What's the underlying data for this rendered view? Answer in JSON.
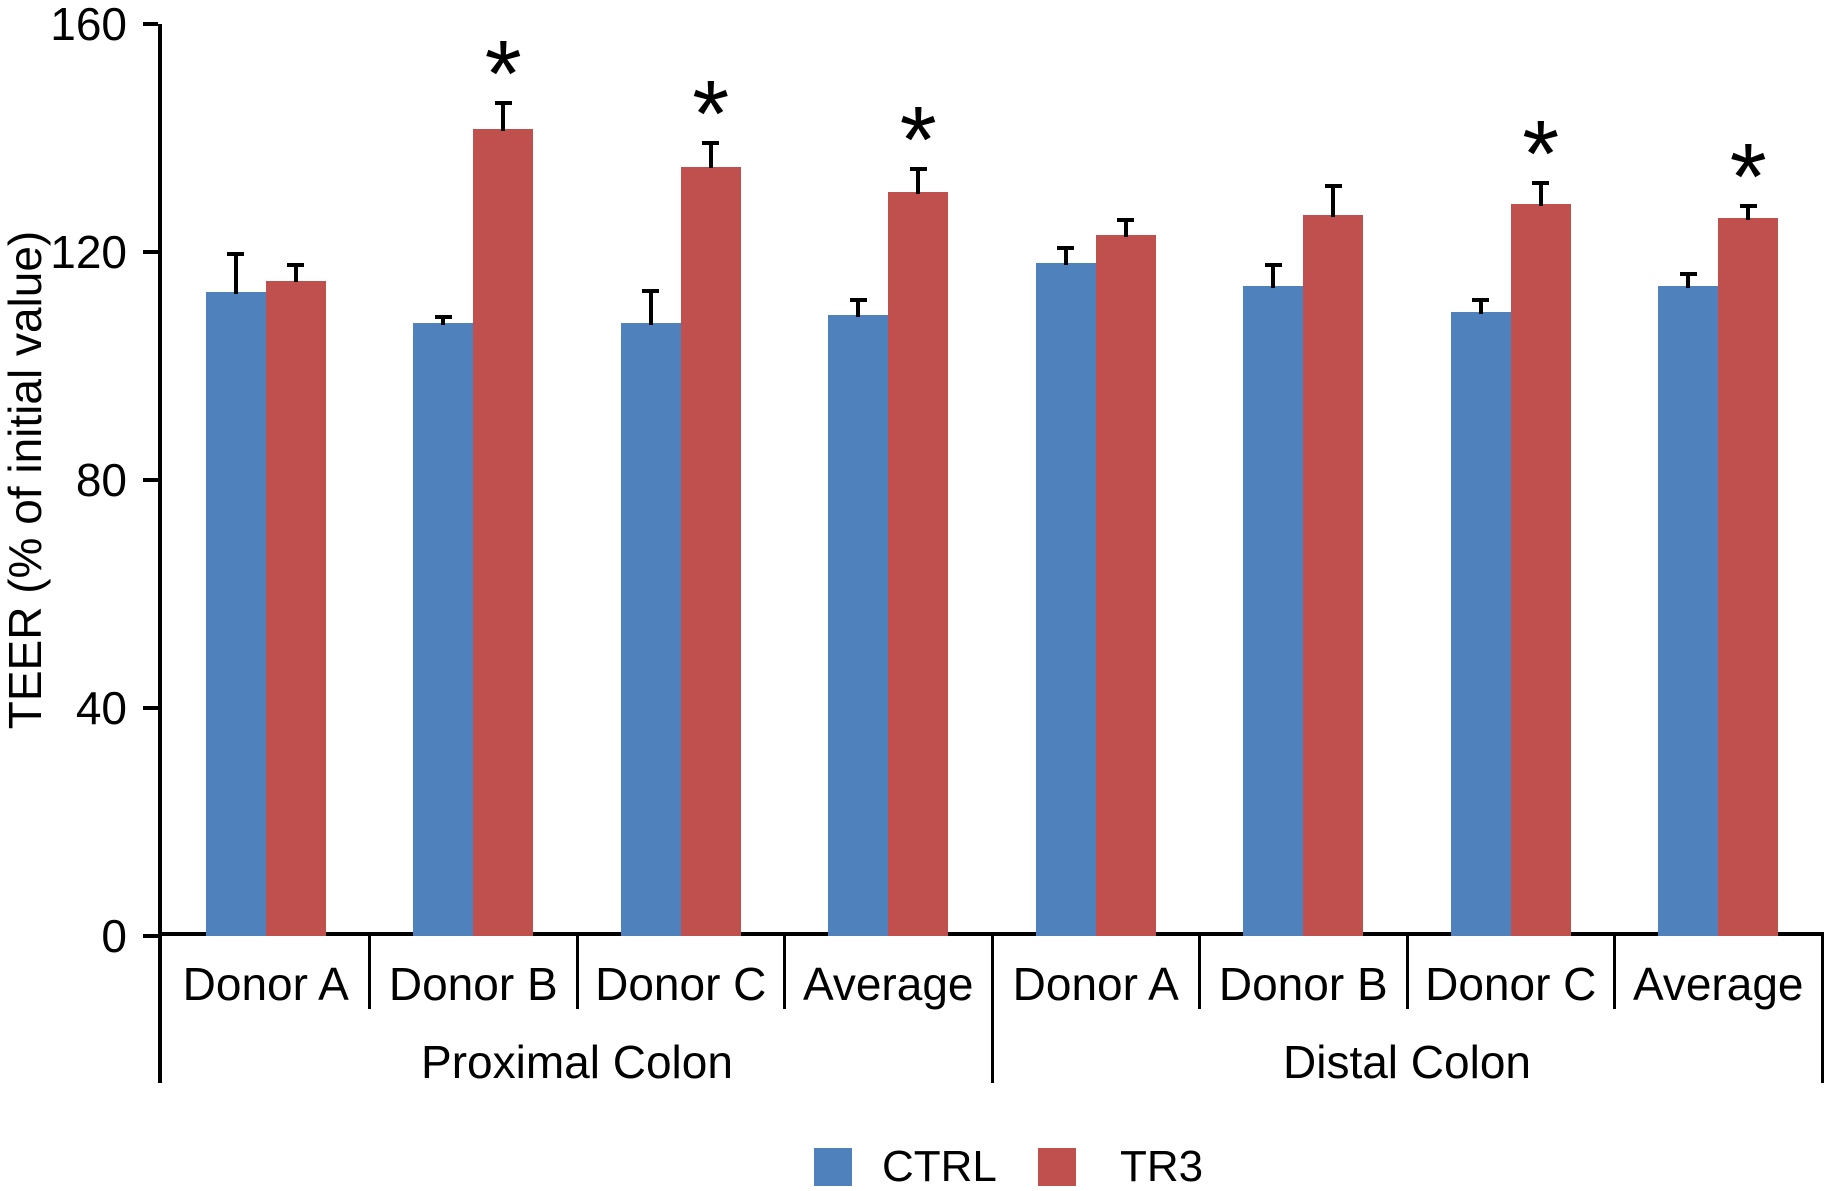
{
  "chart_data": {
    "type": "bar",
    "title": "",
    "ylabel": "TEER (% of initial value)",
    "xlabel": "",
    "ylim": [
      0,
      160
    ],
    "yticks": [
      0,
      40,
      80,
      120,
      160
    ],
    "grid": false,
    "groups": [
      {
        "label": "Proximal Colon",
        "categories": [
          "Donor A",
          "Donor B",
          "Donor C",
          "Average"
        ]
      },
      {
        "label": "Distal Colon",
        "categories": [
          "Donor A",
          "Donor B",
          "Donor C",
          "Average"
        ]
      }
    ],
    "series": [
      {
        "name": "CTRL",
        "color": "#4F81BD",
        "values": [
          113,
          107.5,
          107.5,
          109,
          118,
          114,
          109.5,
          114
        ],
        "errors": [
          7,
          1.5,
          6,
          3,
          3,
          4,
          2.5,
          2.5
        ],
        "significant": [
          false,
          false,
          false,
          false,
          false,
          false,
          false,
          false
        ]
      },
      {
        "name": "TR3",
        "color": "#C0504D",
        "values": [
          115,
          141.5,
          135,
          130.5,
          123,
          126.5,
          128.5,
          126
        ],
        "errors": [
          3,
          5,
          4.5,
          4.5,
          3,
          5.5,
          4,
          2.5
        ],
        "significant": [
          false,
          true,
          true,
          true,
          false,
          false,
          true,
          true
        ]
      }
    ],
    "significance_marker": "*",
    "legend": {
      "items": [
        "CTRL",
        "TR3"
      ],
      "position": "bottom"
    }
  }
}
